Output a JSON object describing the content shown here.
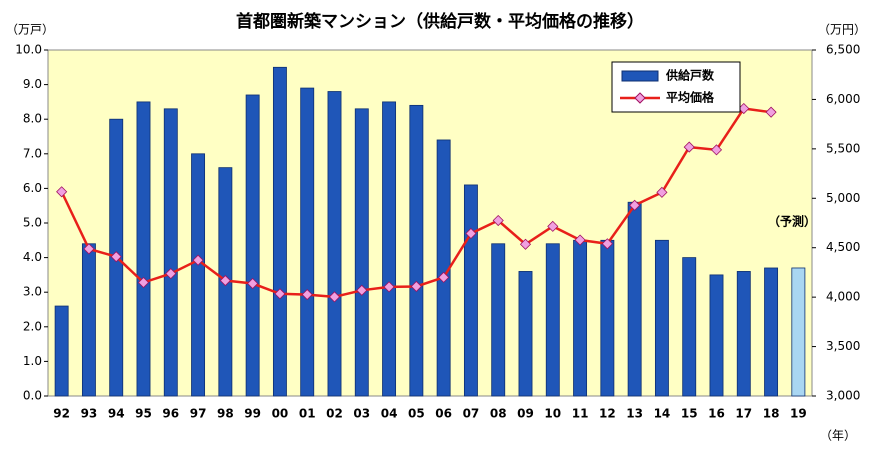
{
  "chart_data": {
    "type": "bar_line",
    "title": "首都圏新築マンション（供給戸数・平均価格の推移）",
    "y_label": "（万戸）",
    "y2_label": "（万円）",
    "x_label": "（年）",
    "annotation": "（予測）",
    "categories": [
      "92",
      "93",
      "94",
      "95",
      "96",
      "97",
      "98",
      "99",
      "00",
      "01",
      "02",
      "03",
      "04",
      "05",
      "06",
      "07",
      "08",
      "09",
      "10",
      "11",
      "12",
      "13",
      "14",
      "15",
      "16",
      "17",
      "18",
      "19"
    ],
    "series": [
      {
        "name": "供給戸数",
        "type": "bar",
        "color": "#1f56b8",
        "colors": [
          "#1f56b8",
          "#1f56b8",
          "#1f56b8",
          "#1f56b8",
          "#1f56b8",
          "#1f56b8",
          "#1f56b8",
          "#1f56b8",
          "#1f56b8",
          "#1f56b8",
          "#1f56b8",
          "#1f56b8",
          "#1f56b8",
          "#1f56b8",
          "#1f56b8",
          "#1f56b8",
          "#1f56b8",
          "#1f56b8",
          "#1f56b8",
          "#1f56b8",
          "#1f56b8",
          "#1f56b8",
          "#1f56b8",
          "#1f56b8",
          "#1f56b8",
          "#1f56b8",
          "#1f56b8",
          "#a9d6f2"
        ],
        "values": [
          2.6,
          4.4,
          8.0,
          8.5,
          8.3,
          7.0,
          6.6,
          8.7,
          9.5,
          8.9,
          8.8,
          8.3,
          8.5,
          8.4,
          7.4,
          6.1,
          4.4,
          3.6,
          4.4,
          4.5,
          4.5,
          5.6,
          4.5,
          4.0,
          3.5,
          3.6,
          3.7,
          3.7
        ]
      },
      {
        "name": "平均価格",
        "type": "line",
        "axis": "y2",
        "color": "#e8201a",
        "marker_color": "#f0a0e0",
        "values": [
          5066,
          4488,
          4409,
          4148,
          4238,
          4374,
          4168,
          4138,
          4034,
          4026,
          4003,
          4069,
          4104,
          4108,
          4200,
          4644,
          4775,
          4535,
          4716,
          4578,
          4540,
          4929,
          5060,
          5518,
          5490,
          5908,
          5871,
          null
        ]
      }
    ],
    "ylim": [
      0,
      10
    ],
    "yticks": [
      {
        "value": 0,
        "label": "0.0"
      },
      {
        "value": 1,
        "label": "1.0"
      },
      {
        "value": 2,
        "label": "2.0"
      },
      {
        "value": 3,
        "label": "3.0"
      },
      {
        "value": 4,
        "label": "4.0"
      },
      {
        "value": 5,
        "label": "5.0"
      },
      {
        "value": 6,
        "label": "6.0"
      },
      {
        "value": 7,
        "label": "7.0"
      },
      {
        "value": 8,
        "label": "8.0"
      },
      {
        "value": 9,
        "label": "9.0"
      },
      {
        "value": 10,
        "label": "10.0"
      }
    ],
    "y2lim": [
      3000,
      6500
    ],
    "y2ticks": [
      {
        "value": 3000,
        "label": "3,000"
      },
      {
        "value": 3500,
        "label": "3,500"
      },
      {
        "value": 4000,
        "label": "4,000"
      },
      {
        "value": 4500,
        "label": "4,500"
      },
      {
        "value": 5000,
        "label": "5,000"
      },
      {
        "value": 5500,
        "label": "5,500"
      },
      {
        "value": 6000,
        "label": "6,000"
      },
      {
        "value": 6500,
        "label": "6,500"
      }
    ],
    "background": "#ffffc4",
    "legend": "upper right"
  }
}
